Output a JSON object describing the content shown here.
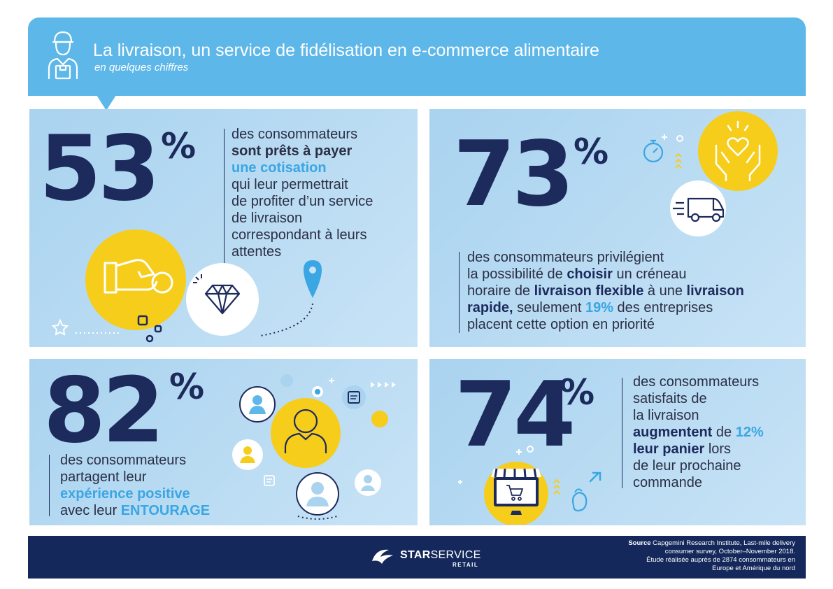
{
  "header": {
    "title": "La livraison, un service de fidélisation en e-commerce alimentaire",
    "subtitle": "en quelques chiffres",
    "icon": "delivery-person-icon"
  },
  "stats": [
    {
      "value": "53",
      "unit": "%",
      "text": [
        "des consommateurs",
        "sont prêts à payer",
        "une cotisation",
        "qui leur permettrait",
        "de profiter d’un service",
        "de livraison",
        "correspondant à leurs",
        "attentes"
      ],
      "icons": [
        "hand-coin-icon",
        "diamond-icon",
        "location-pin-icon",
        "star-icon"
      ]
    },
    {
      "value": "73",
      "unit": "%",
      "text": {
        "line1": "des consommateurs privilégient",
        "line2a": "la possibilité de ",
        "line2b": "choisir",
        "line2c": " un créneau",
        "line3a": "horaire de ",
        "line3b": "livraison flexible",
        "line3c": " à une ",
        "line3d": "livraison",
        "line4a": "rapide,",
        "line4b": " seulement ",
        "line4c": "19%",
        "line4d": " des entreprises",
        "line5": "placent cette option en priorité"
      },
      "icons": [
        "stopwatch-icon",
        "heart-hands-icon",
        "delivery-truck-icon"
      ]
    },
    {
      "value": "82",
      "unit": "%",
      "text": {
        "line1": "des consommateurs",
        "line2": "partagent leur",
        "line3": "expérience positive",
        "line4a": "avec leur ",
        "line4b": "ENTOURAGE"
      },
      "icons": [
        "network-people-icon"
      ]
    },
    {
      "value": "74",
      "unit": "%",
      "text": {
        "line1": "des consommateurs",
        "line2": "satisfaits de",
        "line3": "la livraison",
        "line4a": "augmentent",
        "line4b": " de ",
        "line4c": "12%",
        "line5a": "leur panier",
        "line5b": " lors",
        "line6": "de leur prochaine",
        "line7": "commande"
      },
      "icons": [
        "online-shop-icon",
        "cursor-icon",
        "wallet-icon"
      ]
    }
  ],
  "footer": {
    "logo_main_bold": "STAR",
    "logo_main_light": "SERVICE",
    "logo_sub": "RETAIL",
    "source_label": "Source",
    "source_line1": " Capgemini Research Institute,  Last-mile delivery",
    "source_line2": "consumer survey, October–November 2018.",
    "source_line3": "Étude réalisée auprès de 2874 consommateurs en",
    "source_line4": "Europe et Amérique du nord"
  },
  "colors": {
    "navy": "#1d2a5c",
    "sky": "#5db7e8",
    "accent": "#3aa6e3",
    "yellow": "#f6cd1b",
    "panel_light": "#c8e3f6",
    "footer": "#14285b"
  }
}
